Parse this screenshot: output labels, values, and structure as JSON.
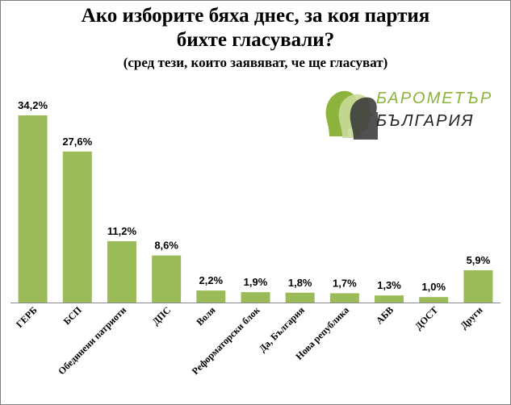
{
  "title": {
    "line1": "Ако изборите бяха днес, за коя партия",
    "line2": "бихте гласували?",
    "subtitle": "(сред тези, които заявяват, че ще гласуват)"
  },
  "logo": {
    "line1": "БАРОМЕТЪР",
    "line2": "БЪЛГАРИЯ"
  },
  "colors": {
    "bar": "#9bbb59",
    "bar_border": "#7a9a3e"
  },
  "chart_data": {
    "type": "bar",
    "categories": [
      "ГЕРБ",
      "БСП",
      "Обединени патриоти",
      "ДПС",
      "Воля",
      "Реформаторски блок",
      "Да, България",
      "Нова република",
      "АБВ",
      "ДОСТ",
      "Други"
    ],
    "values": [
      34.2,
      27.6,
      11.2,
      8.6,
      2.2,
      1.9,
      1.8,
      1.7,
      1.3,
      1.0,
      5.9
    ],
    "data_labels": [
      "34,2%",
      "27,6%",
      "11,2%",
      "8,6%",
      "2,2%",
      "1,9%",
      "1,8%",
      "1,7%",
      "1,3%",
      "1,0%",
      "5,9%"
    ],
    "ylim": [
      0,
      40
    ],
    "grid": false,
    "legend": "none"
  }
}
